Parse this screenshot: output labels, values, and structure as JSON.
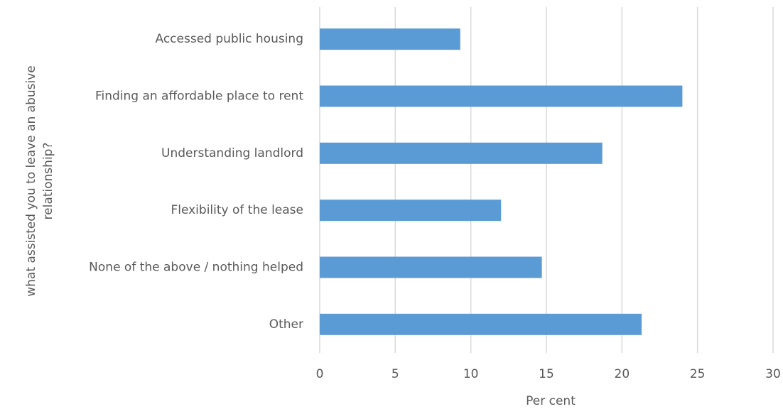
{
  "chart_data": {
    "type": "bar",
    "orientation": "horizontal",
    "categories": [
      "Accessed public housing",
      "Finding an affordable place to rent",
      "Understanding landlord",
      "Flexibility of the lease",
      "None of the above / nothing helped",
      "Other"
    ],
    "values": [
      9.3,
      24,
      18.7,
      12,
      14.7,
      21.3
    ],
    "color": "#5b9bd5",
    "xlim": [
      0,
      30
    ],
    "xticks": [
      0,
      5,
      10,
      15,
      20,
      25,
      30
    ],
    "grid": true,
    "x_label": "Per cent",
    "y_label": [
      "what assisted you to leave an abusive",
      "relationship?"
    ]
  }
}
